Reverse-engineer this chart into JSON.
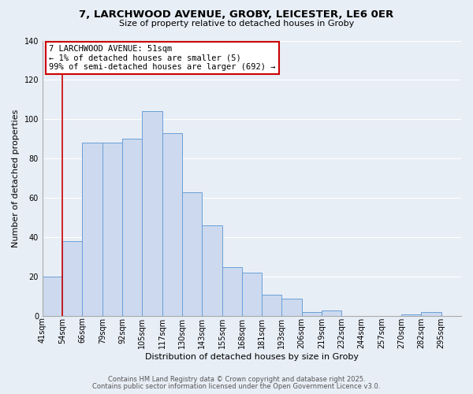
{
  "title_line1": "7, LARCHWOOD AVENUE, GROBY, LEICESTER, LE6 0ER",
  "title_line2": "Size of property relative to detached houses in Groby",
  "bar_labels": [
    "41sqm",
    "54sqm",
    "66sqm",
    "79sqm",
    "92sqm",
    "105sqm",
    "117sqm",
    "130sqm",
    "143sqm",
    "155sqm",
    "168sqm",
    "181sqm",
    "193sqm",
    "206sqm",
    "219sqm",
    "232sqm",
    "244sqm",
    "257sqm",
    "270sqm",
    "282sqm",
    "295sqm"
  ],
  "bar_values": [
    20,
    38,
    88,
    88,
    90,
    104,
    93,
    63,
    46,
    25,
    22,
    11,
    9,
    2,
    3,
    0,
    0,
    0,
    1,
    2,
    0
  ],
  "bar_color": "#ccd9ee",
  "bar_edge_color": "#6a9fd8",
  "xlabel": "Distribution of detached houses by size in Groby",
  "ylabel": "Number of detached properties",
  "ylim": [
    0,
    140
  ],
  "yticks": [
    0,
    20,
    40,
    60,
    80,
    100,
    120,
    140
  ],
  "property_line_x": 1.0,
  "annotation_title": "7 LARCHWOOD AVENUE: 51sqm",
  "annotation_line1": "← 1% of detached houses are smaller (5)",
  "annotation_line2": "99% of semi-detached houses are larger (692) →",
  "annotation_box_color": "white",
  "annotation_box_edge_color": "#cc0000",
  "red_line_color": "#cc0000",
  "background_color": "#e8eef6",
  "plot_bg_color": "#e8eef6",
  "footer_line1": "Contains HM Land Registry data © Crown copyright and database right 2025.",
  "footer_line2": "Contains public sector information licensed under the Open Government Licence v3.0.",
  "grid_color": "#ffffff",
  "title_fontsize": 9.5,
  "subtitle_fontsize": 8.0,
  "axis_label_fontsize": 8.0,
  "tick_fontsize": 7.0,
  "annotation_fontsize": 7.5,
  "footer_fontsize": 6.0
}
